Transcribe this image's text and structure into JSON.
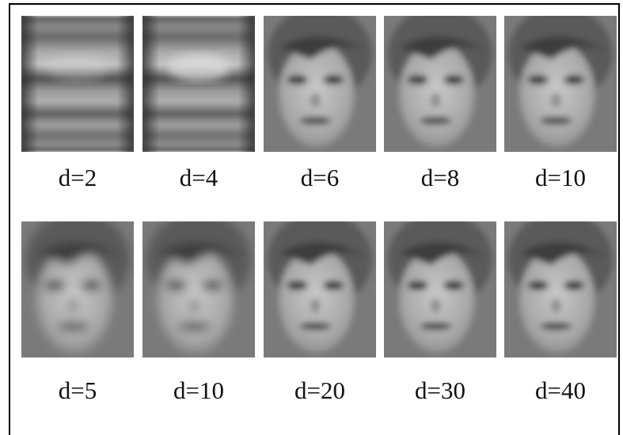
{
  "rows": [
    [
      "d=2",
      "d=4",
      "d=6",
      "d=8",
      "d=10"
    ],
    [
      "d=5",
      "d=10",
      "d=20",
      "d=30",
      "d=40"
    ]
  ]
}
